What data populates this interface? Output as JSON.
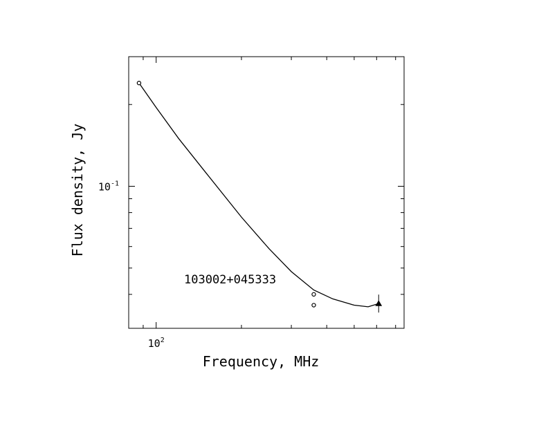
{
  "chart_data": {
    "type": "scatter",
    "title": "",
    "xlabel": "Frequency, MHz",
    "ylabel": "Flux density, Jy",
    "x_scale": "log",
    "y_scale": "log",
    "xlim": [
      80,
      750
    ],
    "ylim": [
      0.03,
      0.3
    ],
    "x_tick_labels": [
      {
        "value": 100,
        "base": "10",
        "exp": "2"
      }
    ],
    "y_tick_labels": [
      {
        "value": 0.1,
        "base": "10",
        "exp": "-1"
      }
    ],
    "grid": false,
    "annotation": "103002+045333",
    "points": [
      {
        "x": 87,
        "y": 0.24,
        "marker": "circle"
      },
      {
        "x": 360,
        "y": 0.04,
        "marker": "circle"
      },
      {
        "x": 360,
        "y": 0.0365,
        "marker": "circle"
      },
      {
        "x": 610,
        "y": 0.037,
        "marker": "triangle",
        "error_bar": true
      }
    ],
    "fit_curve": {
      "x": [
        87,
        100,
        120,
        150,
        200,
        250,
        300,
        360,
        420,
        500,
        560,
        610
      ],
      "y": [
        0.24,
        0.195,
        0.15,
        0.112,
        0.077,
        0.059,
        0.0485,
        0.0415,
        0.0385,
        0.0365,
        0.036,
        0.037
      ]
    },
    "colors": {
      "ink": "#000000",
      "background": "#ffffff"
    }
  }
}
